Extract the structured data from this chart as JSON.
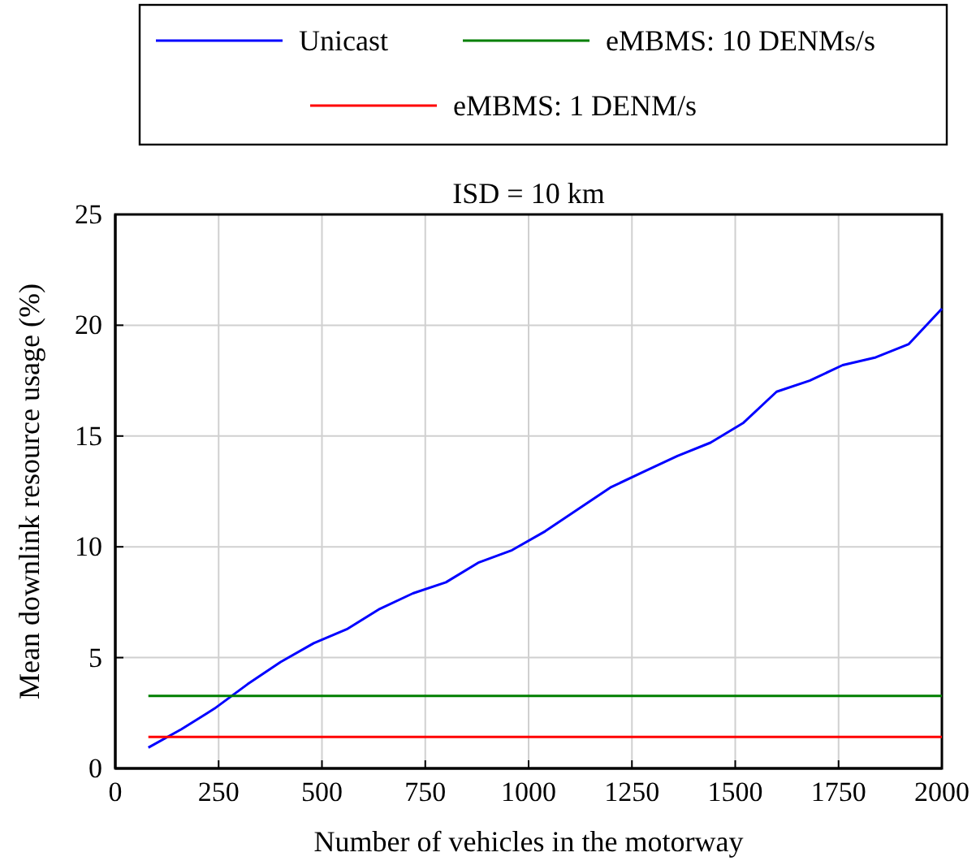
{
  "chart_data": {
    "type": "line",
    "title": "ISD = 10 km",
    "xlabel": "Number of vehicles in the motorway",
    "ylabel": "Mean downlink resource usage (%)",
    "x": [
      80,
      160,
      240,
      320,
      400,
      480,
      560,
      640,
      720,
      800,
      880,
      960,
      1040,
      1120,
      1200,
      1280,
      1360,
      1440,
      1520,
      1600,
      1680,
      1760,
      1840,
      1920,
      2000
    ],
    "series": [
      {
        "name": "Unicast",
        "color": "#0000ff",
        "values": [
          0.94,
          1.77,
          2.7,
          3.8,
          4.8,
          5.65,
          6.28,
          7.2,
          7.9,
          8.4,
          9.3,
          9.85,
          10.7,
          11.7,
          12.7,
          13.4,
          14.1,
          14.7,
          15.6,
          17.0,
          17.5,
          18.2,
          18.55,
          19.15,
          20.75
        ]
      },
      {
        "name": "eMBMS: 10 DENMs/s",
        "color": "#007f00",
        "values": [
          3.27,
          3.27,
          3.27,
          3.27,
          3.27,
          3.27,
          3.27,
          3.27,
          3.27,
          3.27,
          3.27,
          3.27,
          3.27,
          3.27,
          3.27,
          3.27,
          3.27,
          3.27,
          3.27,
          3.27,
          3.27,
          3.27,
          3.27,
          3.27,
          3.27
        ]
      },
      {
        "name": "eMBMS: 1 DENM/s",
        "color": "#ff0000",
        "values": [
          1.42,
          1.42,
          1.42,
          1.42,
          1.42,
          1.42,
          1.42,
          1.42,
          1.42,
          1.42,
          1.42,
          1.42,
          1.42,
          1.42,
          1.42,
          1.42,
          1.42,
          1.42,
          1.42,
          1.42,
          1.42,
          1.42,
          1.42,
          1.42,
          1.42
        ]
      }
    ],
    "xlim": [
      0,
      2000
    ],
    "xticks": [
      0,
      250,
      500,
      750,
      1000,
      1250,
      1500,
      1750,
      2000
    ],
    "ylim": [
      0,
      25
    ],
    "yticks": [
      0,
      5,
      10,
      15,
      20,
      25
    ],
    "grid": true,
    "legend": "top",
    "marker": "none",
    "line_style": "solid"
  }
}
